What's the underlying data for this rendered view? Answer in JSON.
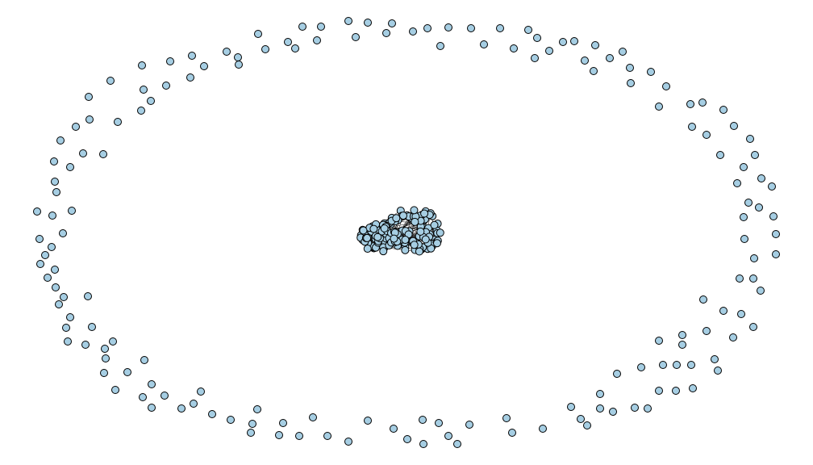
{
  "node_style": {
    "fill": "#a6cee3",
    "stroke": "#000000"
  }
}
